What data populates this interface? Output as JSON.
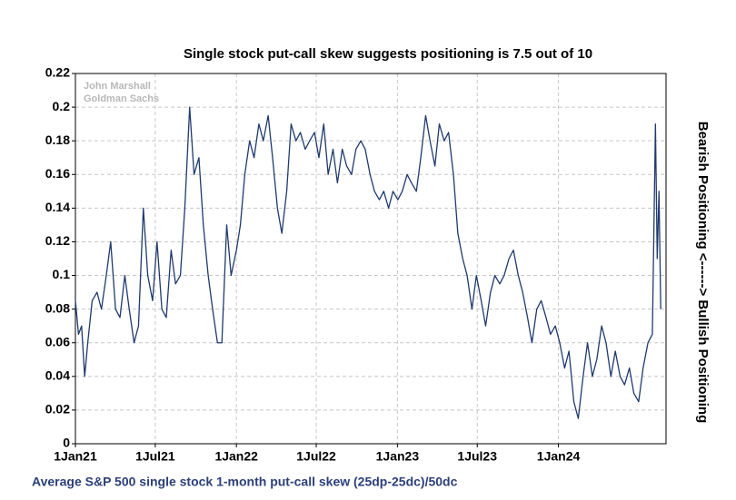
{
  "chart_data": {
    "type": "line",
    "title": "Single stock put-call skew suggests positioning is 7.5 out of 10",
    "watermark": [
      "John Marshall",
      "Goldman Sachs"
    ],
    "y_label_right": "Bearish Positioning <------> Bullish Positioning",
    "caption": "Average S&P 500 single stock 1-month put-call skew (25dp-25dc)/50dc",
    "grid": true,
    "xlim": [
      "2021-01-01",
      "2024-09-01"
    ],
    "xticks": [
      {
        "value": "2021-01-01",
        "label": "1Jan21"
      },
      {
        "value": "2021-07-01",
        "label": "1Jul21"
      },
      {
        "value": "2022-01-01",
        "label": "1Jan22"
      },
      {
        "value": "2022-07-01",
        "label": "1Jul22"
      },
      {
        "value": "2023-01-01",
        "label": "1Jan23"
      },
      {
        "value": "2023-07-01",
        "label": "1Jul23"
      },
      {
        "value": "2024-01-01",
        "label": "1Jan24"
      }
    ],
    "ylim": [
      0,
      0.22
    ],
    "yticks": [
      0,
      0.02,
      0.04,
      0.06,
      0.08,
      0.1,
      0.12,
      0.14,
      0.16,
      0.18,
      0.2,
      0.22
    ],
    "x": [
      "2021-01-01",
      "2021-01-08",
      "2021-01-15",
      "2021-01-22",
      "2021-01-29",
      "2021-02-08",
      "2021-02-19",
      "2021-03-01",
      "2021-03-12",
      "2021-03-22",
      "2021-04-02",
      "2021-04-12",
      "2021-04-23",
      "2021-05-03",
      "2021-05-14",
      "2021-05-24",
      "2021-06-04",
      "2021-06-14",
      "2021-06-25",
      "2021-07-05",
      "2021-07-16",
      "2021-07-26",
      "2021-08-06",
      "2021-08-16",
      "2021-08-27",
      "2021-09-06",
      "2021-09-17",
      "2021-09-27",
      "2021-10-08",
      "2021-10-18",
      "2021-10-29",
      "2021-11-08",
      "2021-11-19",
      "2021-11-29",
      "2021-12-10",
      "2021-12-20",
      "2022-01-01",
      "2022-01-10",
      "2022-01-20",
      "2022-01-31",
      "2022-02-10",
      "2022-02-21",
      "2022-03-03",
      "2022-03-14",
      "2022-03-24",
      "2022-04-04",
      "2022-04-14",
      "2022-04-25",
      "2022-05-05",
      "2022-05-16",
      "2022-05-26",
      "2022-06-06",
      "2022-06-16",
      "2022-06-27",
      "2022-07-07",
      "2022-07-18",
      "2022-07-28",
      "2022-08-08",
      "2022-08-18",
      "2022-08-29",
      "2022-09-08",
      "2022-09-19",
      "2022-09-29",
      "2022-10-10",
      "2022-10-20",
      "2022-10-31",
      "2022-11-10",
      "2022-11-21",
      "2022-12-01",
      "2022-12-12",
      "2022-12-22",
      "2023-01-02",
      "2023-01-12",
      "2023-01-23",
      "2023-02-02",
      "2023-02-13",
      "2023-02-23",
      "2023-03-06",
      "2023-03-16",
      "2023-03-27",
      "2023-04-06",
      "2023-04-17",
      "2023-04-27",
      "2023-05-08",
      "2023-05-18",
      "2023-05-29",
      "2023-06-08",
      "2023-06-19",
      "2023-06-29",
      "2023-07-10",
      "2023-07-20",
      "2023-07-31",
      "2023-08-10",
      "2023-08-21",
      "2023-08-31",
      "2023-09-11",
      "2023-09-21",
      "2023-10-02",
      "2023-10-12",
      "2023-10-23",
      "2023-11-02",
      "2023-11-13",
      "2023-11-23",
      "2023-12-04",
      "2023-12-14",
      "2023-12-25",
      "2024-01-04",
      "2024-01-15",
      "2024-01-25",
      "2024-02-05",
      "2024-02-15",
      "2024-02-26",
      "2024-03-07",
      "2024-03-18",
      "2024-03-28",
      "2024-04-08",
      "2024-04-18",
      "2024-04-29",
      "2024-05-09",
      "2024-05-20",
      "2024-05-30",
      "2024-06-10",
      "2024-06-20",
      "2024-07-01",
      "2024-07-11",
      "2024-07-22",
      "2024-08-01",
      "2024-08-08",
      "2024-08-12",
      "2024-08-16",
      "2024-08-20"
    ],
    "series": [
      {
        "name": "Average S&P 500 single stock 1-month put-call skew",
        "color": "#1f3a6e",
        "values": [
          0.085,
          0.065,
          0.07,
          0.04,
          0.06,
          0.085,
          0.09,
          0.08,
          0.1,
          0.12,
          0.08,
          0.075,
          0.1,
          0.08,
          0.06,
          0.07,
          0.14,
          0.1,
          0.085,
          0.12,
          0.08,
          0.075,
          0.115,
          0.095,
          0.1,
          0.14,
          0.2,
          0.16,
          0.17,
          0.13,
          0.1,
          0.08,
          0.06,
          0.06,
          0.13,
          0.1,
          0.115,
          0.13,
          0.16,
          0.18,
          0.17,
          0.19,
          0.18,
          0.195,
          0.17,
          0.14,
          0.125,
          0.15,
          0.19,
          0.18,
          0.185,
          0.175,
          0.18,
          0.185,
          0.17,
          0.19,
          0.16,
          0.175,
          0.155,
          0.175,
          0.165,
          0.16,
          0.175,
          0.18,
          0.175,
          0.16,
          0.15,
          0.145,
          0.15,
          0.14,
          0.15,
          0.145,
          0.15,
          0.16,
          0.155,
          0.15,
          0.17,
          0.195,
          0.18,
          0.165,
          0.19,
          0.18,
          0.185,
          0.16,
          0.125,
          0.11,
          0.1,
          0.08,
          0.1,
          0.085,
          0.07,
          0.09,
          0.1,
          0.095,
          0.1,
          0.11,
          0.115,
          0.1,
          0.09,
          0.075,
          0.06,
          0.08,
          0.085,
          0.075,
          0.065,
          0.07,
          0.06,
          0.045,
          0.055,
          0.025,
          0.015,
          0.04,
          0.06,
          0.04,
          0.05,
          0.07,
          0.06,
          0.04,
          0.055,
          0.04,
          0.035,
          0.045,
          0.03,
          0.025,
          0.045,
          0.06,
          0.065,
          0.19,
          0.11,
          0.15,
          0.08
        ]
      }
    ]
  }
}
